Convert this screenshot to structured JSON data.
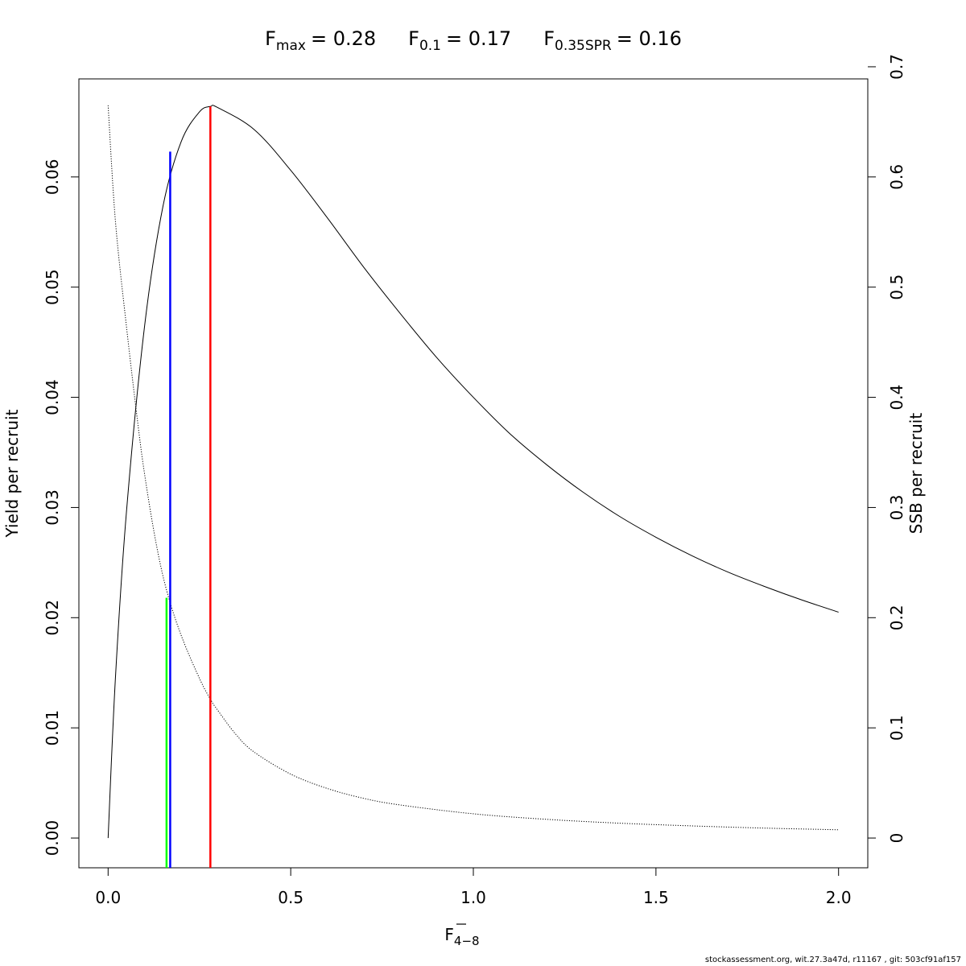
{
  "title": {
    "fmax_main": "F",
    "fmax_sub": "max",
    "fmax_value": "= 0.28",
    "f01_main": "F",
    "f01_sub": "0.1",
    "f01_value": "= 0.17",
    "fspr_main": "F",
    "fspr_sub": "0.35SPR",
    "fspr_value": "= 0.16"
  },
  "footer": "stockassessment.org, wit.27.3a47d, r11167 , git: 503cf91af157",
  "chart_data": {
    "type": "line",
    "xlabel_main": "F",
    "xlabel_sub": "4−8",
    "ylabel_left": "Yield per recruit",
    "ylabel_right": "SSB per recruit",
    "xlim": [
      -0.08,
      2.08
    ],
    "ylim_left": [
      -0.0027,
      0.0689
    ],
    "ylim_right": [
      -0.027,
      0.689
    ],
    "x_ticks": [
      0.0,
      0.5,
      1.0,
      1.5,
      2.0
    ],
    "x_tick_labels": [
      "0.0",
      "0.5",
      "1.0",
      "1.5",
      "2.0"
    ],
    "y_left_ticks": [
      0.0,
      0.01,
      0.02,
      0.03,
      0.04,
      0.05,
      0.06
    ],
    "y_left_tick_labels": [
      "0.00",
      "0.01",
      "0.02",
      "0.03",
      "0.04",
      "0.05",
      "0.06"
    ],
    "y_right_ticks": [
      0,
      0.1,
      0.2,
      0.3,
      0.4,
      0.5,
      0.6,
      0.7
    ],
    "y_right_tick_labels": [
      "0",
      "0.1",
      "0.2",
      "0.3",
      "0.4",
      "0.5",
      "0.6",
      "0.7"
    ],
    "series": [
      {
        "axis": "left",
        "line_style": "solid",
        "color": "#000000",
        "x": [
          0,
          0.02,
          0.05,
          0.1,
          0.15,
          0.2,
          0.25,
          0.28,
          0.3,
          0.4,
          0.5,
          0.6,
          0.7,
          0.8,
          0.9,
          1.0,
          1.1,
          1.2,
          1.3,
          1.4,
          1.5,
          1.6,
          1.7,
          1.8,
          1.9,
          2.0
        ],
        "y": [
          0.0,
          0.0145,
          0.0295,
          0.0465,
          0.0573,
          0.0632,
          0.0659,
          0.0664,
          0.0663,
          0.0643,
          0.0606,
          0.0563,
          0.0518,
          0.0476,
          0.0436,
          0.04,
          0.0367,
          0.0339,
          0.0314,
          0.0292,
          0.0273,
          0.0256,
          0.0241,
          0.0228,
          0.0216,
          0.0205
        ]
      },
      {
        "axis": "right",
        "line_style": "dotted",
        "color": "#000000",
        "x": [
          0,
          0.02,
          0.05,
          0.08,
          0.1,
          0.13,
          0.16,
          0.2,
          0.25,
          0.28,
          0.3,
          0.35,
          0.4,
          0.5,
          0.6,
          0.7,
          0.8,
          1.0,
          1.2,
          1.4,
          1.6,
          1.8,
          2.0
        ],
        "y": [
          0.665,
          0.56,
          0.465,
          0.38,
          0.33,
          0.27,
          0.225,
          0.184,
          0.145,
          0.126,
          0.116,
          0.094,
          0.078,
          0.058,
          0.045,
          0.036,
          0.03,
          0.022,
          0.017,
          0.0135,
          0.011,
          0.009,
          0.0075
        ]
      }
    ],
    "reference_lines": [
      {
        "name": "Fmax",
        "x": 0.28,
        "y_top": 0.0664,
        "color": "#ff0000"
      },
      {
        "name": "F0.1",
        "x": 0.17,
        "y_top": 0.0623,
        "color": "#0000ff"
      },
      {
        "name": "F0.35SPR",
        "x": 0.16,
        "y_top": 0.0218,
        "color": "#00ff00"
      }
    ]
  }
}
